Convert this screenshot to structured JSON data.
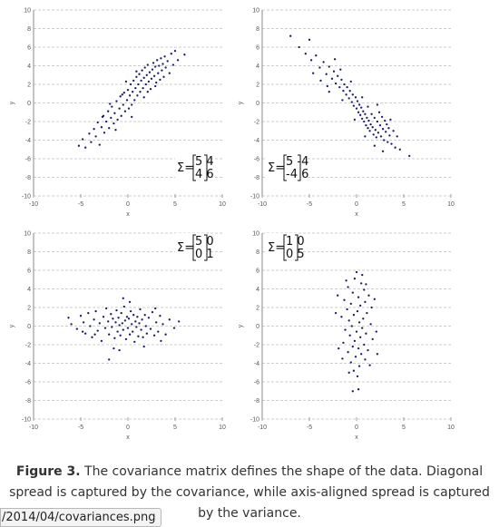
{
  "caption": {
    "figure_label": "Figure 3.",
    "text": "The covariance matrix defines the shape of the data. Diagonal spread is captured by the covariance, while axis-aligned spread is captured by the variance."
  },
  "url_tooltip": "/2014/04/covariances.png",
  "chart_data": [
    {
      "type": "scatter",
      "xlabel": "x",
      "ylabel": "y",
      "xlim": [
        -10,
        10
      ],
      "ylim": [
        -10,
        10
      ],
      "xticks": [
        "-10",
        "-5",
        "0",
        "5",
        "10"
      ],
      "yticks": [
        "10",
        "8",
        "6",
        "4",
        "2",
        "0",
        "-2",
        "-4",
        "-6",
        "-8",
        "-10"
      ],
      "grid": "horizontal dashed",
      "annotation": {
        "symbol": "Σ=",
        "matrix": [
          [
            "5",
            "4"
          ],
          [
            "4",
            "6"
          ]
        ],
        "placement": "bottom-right"
      },
      "point_color": "#1a1a6e",
      "points": [
        [
          -5.2,
          -4.6
        ],
        [
          -4.8,
          -3.9
        ],
        [
          -4.5,
          -4.8
        ],
        [
          -4.1,
          -3.3
        ],
        [
          -3.9,
          -4.2
        ],
        [
          -3.6,
          -2.8
        ],
        [
          -3.4,
          -3.6
        ],
        [
          -3.2,
          -2.1
        ],
        [
          -3.0,
          -4.5
        ],
        [
          -2.8,
          -2.6
        ],
        [
          -2.6,
          -1.4
        ],
        [
          -2.5,
          -3.2
        ],
        [
          -2.3,
          -2.0
        ],
        [
          -2.1,
          -0.9
        ],
        [
          -2.0,
          -2.7
        ],
        [
          -1.8,
          -1.6
        ],
        [
          -1.7,
          -0.4
        ],
        [
          -1.5,
          -2.2
        ],
        [
          -1.4,
          -1.1
        ],
        [
          -1.2,
          0.2
        ],
        [
          -1.1,
          -1.8
        ],
        [
          -0.9,
          -0.6
        ],
        [
          -0.8,
          0.7
        ],
        [
          -0.7,
          -1.4
        ],
        [
          -0.5,
          -0.2
        ],
        [
          -0.4,
          1.1
        ],
        [
          -0.3,
          -0.9
        ],
        [
          -0.1,
          0.3
        ],
        [
          0.0,
          1.4
        ],
        [
          0.1,
          -0.6
        ],
        [
          0.2,
          0.8
        ],
        [
          0.3,
          2.0
        ],
        [
          0.4,
          -0.2
        ],
        [
          0.5,
          1.2
        ],
        [
          0.6,
          2.4
        ],
        [
          0.7,
          0.3
        ],
        [
          0.8,
          1.6
        ],
        [
          0.9,
          2.8
        ],
        [
          1.0,
          0.8
        ],
        [
          1.1,
          2.0
        ],
        [
          1.2,
          3.1
        ],
        [
          1.3,
          1.2
        ],
        [
          1.4,
          2.4
        ],
        [
          1.5,
          3.5
        ],
        [
          1.6,
          1.6
        ],
        [
          1.7,
          2.7
        ],
        [
          1.8,
          3.8
        ],
        [
          1.9,
          2.0
        ],
        [
          2.0,
          3.0
        ],
        [
          2.1,
          4.1
        ],
        [
          2.2,
          2.3
        ],
        [
          2.3,
          3.3
        ],
        [
          2.4,
          1.5
        ],
        [
          2.5,
          2.6
        ],
        [
          2.6,
          3.6
        ],
        [
          2.7,
          4.3
        ],
        [
          2.8,
          2.9
        ],
        [
          2.9,
          3.9
        ],
        [
          3.0,
          2.2
        ],
        [
          3.1,
          4.6
        ],
        [
          3.2,
          3.2
        ],
        [
          3.3,
          4.0
        ],
        [
          3.4,
          2.5
        ],
        [
          3.5,
          4.8
        ],
        [
          3.6,
          3.5
        ],
        [
          3.7,
          4.2
        ],
        [
          3.8,
          2.8
        ],
        [
          3.9,
          5.0
        ],
        [
          4.0,
          3.8
        ],
        [
          4.2,
          4.5
        ],
        [
          4.4,
          3.2
        ],
        [
          4.6,
          5.3
        ],
        [
          4.8,
          4.1
        ],
        [
          5.0,
          5.6
        ],
        [
          5.3,
          4.6
        ],
        [
          6.0,
          5.2
        ],
        [
          -0.6,
          0.9
        ],
        [
          -1.9,
          -0.1
        ],
        [
          0.4,
          -1.5
        ],
        [
          1.7,
          0.6
        ],
        [
          -2.7,
          -1.5
        ],
        [
          -0.2,
          2.3
        ],
        [
          2.1,
          1.2
        ],
        [
          -1.3,
          -2.9
        ],
        [
          0.9,
          3.4
        ],
        [
          2.9,
          1.8
        ]
      ]
    },
    {
      "type": "scatter",
      "xlabel": "x",
      "ylabel": "y",
      "xlim": [
        -10,
        10
      ],
      "ylim": [
        -10,
        10
      ],
      "xticks": [
        "-10",
        "-5",
        "0",
        "5",
        "10"
      ],
      "yticks": [
        "10",
        "8",
        "6",
        "4",
        "2",
        "0",
        "-2",
        "-4",
        "-6",
        "-8",
        "-10"
      ],
      "grid": "horizontal dashed",
      "annotation": {
        "symbol": "Σ=",
        "matrix": [
          [
            "5",
            "-4"
          ],
          [
            "-4",
            "6"
          ]
        ],
        "placement": "bottom-left"
      },
      "point_color": "#1a1a6e",
      "points": [
        [
          -7.0,
          7.2
        ],
        [
          -6.1,
          6.0
        ],
        [
          -5.4,
          5.3
        ],
        [
          -4.8,
          4.6
        ],
        [
          -4.3,
          5.1
        ],
        [
          -3.9,
          3.8
        ],
        [
          -3.5,
          4.4
        ],
        [
          -3.2,
          3.1
        ],
        [
          -2.9,
          3.9
        ],
        [
          -2.6,
          2.6
        ],
        [
          -2.4,
          3.4
        ],
        [
          -2.2,
          2.1
        ],
        [
          -2.0,
          2.9
        ],
        [
          -1.8,
          1.7
        ],
        [
          -1.6,
          2.5
        ],
        [
          -1.4,
          1.3
        ],
        [
          -1.3,
          2.0
        ],
        [
          -1.1,
          0.9
        ],
        [
          -1.0,
          1.7
        ],
        [
          -0.8,
          0.5
        ],
        [
          -0.7,
          1.3
        ],
        [
          -0.5,
          0.1
        ],
        [
          -0.4,
          0.9
        ],
        [
          -0.3,
          -0.3
        ],
        [
          -0.1,
          0.6
        ],
        [
          0.0,
          -0.6
        ],
        [
          0.1,
          0.2
        ],
        [
          0.2,
          -1.0
        ],
        [
          0.3,
          -0.2
        ],
        [
          0.4,
          -1.3
        ],
        [
          0.5,
          -0.5
        ],
        [
          0.6,
          -1.7
        ],
        [
          0.7,
          -0.9
        ],
        [
          0.8,
          -2.0
        ],
        [
          0.9,
          -1.2
        ],
        [
          1.0,
          -2.4
        ],
        [
          1.1,
          -1.6
        ],
        [
          1.2,
          -2.7
        ],
        [
          1.3,
          -1.9
        ],
        [
          1.4,
          -3.0
        ],
        [
          1.5,
          -2.3
        ],
        [
          1.6,
          -1.2
        ],
        [
          1.7,
          -2.6
        ],
        [
          1.8,
          -3.4
        ],
        [
          1.9,
          -1.6
        ],
        [
          2.0,
          -2.9
        ],
        [
          2.1,
          -3.7
        ],
        [
          2.2,
          -2.0
        ],
        [
          2.3,
          -3.2
        ],
        [
          2.4,
          -1.0
        ],
        [
          2.5,
          -2.4
        ],
        [
          2.6,
          -3.6
        ],
        [
          2.7,
          -1.5
        ],
        [
          2.8,
          -2.8
        ],
        [
          2.9,
          -4.0
        ],
        [
          3.0,
          -1.9
        ],
        [
          3.1,
          -3.1
        ],
        [
          3.2,
          -2.3
        ],
        [
          3.3,
          -4.2
        ],
        [
          3.4,
          -2.7
        ],
        [
          3.5,
          -3.5
        ],
        [
          3.7,
          -4.4
        ],
        [
          3.9,
          -3.0
        ],
        [
          4.1,
          -4.8
        ],
        [
          4.3,
          -3.6
        ],
        [
          4.6,
          -5.0
        ],
        [
          -2.9,
          1.2
        ],
        [
          -1.7,
          3.6
        ],
        [
          -0.6,
          2.3
        ],
        [
          0.6,
          0.6
        ],
        [
          1.2,
          -0.4
        ],
        [
          -3.8,
          2.4
        ],
        [
          2.2,
          -0.2
        ],
        [
          -0.2,
          -1.8
        ],
        [
          1.9,
          -4.6
        ],
        [
          -4.6,
          3.2
        ],
        [
          3.6,
          -1.8
        ],
        [
          -1.5,
          0.3
        ],
        [
          -5.0,
          6.8
        ],
        [
          5.6,
          -5.7
        ],
        [
          0.9,
          -3.6
        ],
        [
          -2.3,
          4.7
        ],
        [
          2.8,
          -5.2
        ],
        [
          -3.1,
          1.8
        ]
      ]
    },
    {
      "type": "scatter",
      "xlabel": "x",
      "ylabel": "y",
      "xlim": [
        -10,
        10
      ],
      "ylim": [
        -10,
        10
      ],
      "xticks": [
        "-10",
        "-5",
        "0",
        "5",
        "10"
      ],
      "yticks": [
        "10",
        "8",
        "6",
        "4",
        "2",
        "0",
        "-2",
        "-4",
        "-6",
        "-8",
        "-10"
      ],
      "grid": "horizontal dashed",
      "annotation": {
        "symbol": "Σ=",
        "matrix": [
          [
            "5",
            "0"
          ],
          [
            "0",
            "1"
          ]
        ],
        "placement": "top-right"
      },
      "point_color": "#1a1a6e",
      "points": [
        [
          -6.3,
          0.9
        ],
        [
          -6.0,
          0.2
        ],
        [
          -5.4,
          -0.3
        ],
        [
          -5.0,
          1.1
        ],
        [
          -4.7,
          0.4
        ],
        [
          -4.5,
          -0.8
        ],
        [
          -4.2,
          1.4
        ],
        [
          -4.0,
          0.0
        ],
        [
          -3.8,
          -1.2
        ],
        [
          -3.6,
          0.7
        ],
        [
          -3.4,
          1.6
        ],
        [
          -3.2,
          -0.5
        ],
        [
          -3.0,
          0.3
        ],
        [
          -2.8,
          -1.6
        ],
        [
          -2.6,
          1.0
        ],
        [
          -2.4,
          -0.2
        ],
        [
          -2.3,
          1.9
        ],
        [
          -2.1,
          0.5
        ],
        [
          -2.0,
          -0.9
        ],
        [
          -1.8,
          1.3
        ],
        [
          -1.7,
          -0.1
        ],
        [
          -1.6,
          0.8
        ],
        [
          -1.4,
          -1.3
        ],
        [
          -1.3,
          0.4
        ],
        [
          -1.2,
          1.7
        ],
        [
          -1.1,
          -0.6
        ],
        [
          -1.0,
          0.9
        ],
        [
          -0.9,
          0.1
        ],
        [
          -0.8,
          -1.0
        ],
        [
          -0.7,
          1.4
        ],
        [
          -0.6,
          0.3
        ],
        [
          -0.5,
          -0.4
        ],
        [
          -0.4,
          2.1
        ],
        [
          -0.3,
          0.6
        ],
        [
          -0.2,
          -1.4
        ],
        [
          -0.1,
          1.0
        ],
        [
          0.0,
          -0.2
        ],
        [
          0.1,
          0.8
        ],
        [
          0.2,
          -0.9
        ],
        [
          0.3,
          1.6
        ],
        [
          0.4,
          0.2
        ],
        [
          0.5,
          -0.6
        ],
        [
          0.6,
          1.2
        ],
        [
          0.7,
          -1.7
        ],
        [
          0.8,
          0.5
        ],
        [
          0.9,
          -0.1
        ],
        [
          1.0,
          1.0
        ],
        [
          1.1,
          -1.1
        ],
        [
          1.2,
          0.3
        ],
        [
          1.3,
          1.8
        ],
        [
          1.4,
          -0.4
        ],
        [
          1.5,
          0.7
        ],
        [
          1.6,
          -1.2
        ],
        [
          1.8,
          1.2
        ],
        [
          1.9,
          0.0
        ],
        [
          2.0,
          -0.8
        ],
        [
          2.2,
          0.9
        ],
        [
          2.4,
          -0.3
        ],
        [
          2.6,
          1.5
        ],
        [
          2.8,
          -1.0
        ],
        [
          3.0,
          0.4
        ],
        [
          3.2,
          -0.6
        ],
        [
          3.4,
          1.1
        ],
        [
          3.7,
          0.2
        ],
        [
          4.0,
          -0.9
        ],
        [
          4.4,
          0.7
        ],
        [
          4.9,
          -0.2
        ],
        [
          5.4,
          0.5
        ],
        [
          -2.0,
          -3.6
        ],
        [
          -0.5,
          3.0
        ],
        [
          0.2,
          2.6
        ],
        [
          -1.5,
          -2.4
        ],
        [
          1.7,
          -2.2
        ],
        [
          -3.5,
          -0.9
        ],
        [
          2.9,
          1.9
        ],
        [
          -0.9,
          -2.6
        ],
        [
          3.5,
          -1.6
        ],
        [
          -4.8,
          -0.6
        ]
      ]
    },
    {
      "type": "scatter",
      "xlabel": "x",
      "ylabel": "y",
      "xlim": [
        -10,
        10
      ],
      "ylim": [
        -10,
        10
      ],
      "xticks": [
        "-10",
        "-5",
        "0",
        "5",
        "10"
      ],
      "yticks": [
        "10",
        "8",
        "6",
        "4",
        "2",
        "0",
        "-2",
        "-4",
        "-6",
        "-8",
        "-10"
      ],
      "grid": "horizontal dashed",
      "annotation": {
        "symbol": "Σ=",
        "matrix": [
          [
            "1",
            "0"
          ],
          [
            "0",
            "5"
          ]
        ],
        "placement": "top-left"
      },
      "point_color": "#1a1a6e",
      "points": [
        [
          0.0,
          5.8
        ],
        [
          -0.2,
          5.1
        ],
        [
          0.5,
          4.6
        ],
        [
          -0.9,
          4.2
        ],
        [
          0.8,
          3.9
        ],
        [
          -0.4,
          3.6
        ],
        [
          1.3,
          3.3
        ],
        [
          0.2,
          3.1
        ],
        [
          -1.3,
          2.8
        ],
        [
          0.9,
          2.6
        ],
        [
          -0.6,
          2.4
        ],
        [
          0.4,
          2.2
        ],
        [
          1.6,
          2.0
        ],
        [
          -1.0,
          1.8
        ],
        [
          0.1,
          1.6
        ],
        [
          1.1,
          1.4
        ],
        [
          -0.3,
          1.2
        ],
        [
          -1.6,
          1.0
        ],
        [
          0.7,
          0.8
        ],
        [
          -0.8,
          0.6
        ],
        [
          0.3,
          0.4
        ],
        [
          1.5,
          0.2
        ],
        [
          -0.5,
          0.0
        ],
        [
          0.6,
          -0.2
        ],
        [
          -1.2,
          -0.4
        ],
        [
          0.0,
          -0.6
        ],
        [
          1.0,
          -0.8
        ],
        [
          -0.7,
          -1.0
        ],
        [
          0.4,
          -1.2
        ],
        [
          1.7,
          -1.4
        ],
        [
          -0.2,
          -1.6
        ],
        [
          -1.4,
          -1.8
        ],
        [
          0.8,
          -2.0
        ],
        [
          -0.4,
          -2.2
        ],
        [
          0.2,
          -2.4
        ],
        [
          1.2,
          -2.6
        ],
        [
          -0.9,
          -2.8
        ],
        [
          0.5,
          -3.0
        ],
        [
          -0.1,
          -3.3
        ],
        [
          0.9,
          -3.6
        ],
        [
          -0.6,
          -3.9
        ],
        [
          0.3,
          -4.3
        ],
        [
          -0.3,
          -4.8
        ],
        [
          0.1,
          -5.4
        ],
        [
          -2.2,
          1.4
        ],
        [
          2.1,
          -0.6
        ],
        [
          -1.9,
          -2.4
        ],
        [
          1.9,
          2.9
        ],
        [
          -2.0,
          3.3
        ],
        [
          2.2,
          -3.0
        ],
        [
          -1.1,
          4.9
        ],
        [
          1.4,
          -4.2
        ],
        [
          -0.4,
          -7.0
        ],
        [
          0.2,
          -6.8
        ],
        [
          0.6,
          5.5
        ],
        [
          -1.5,
          -3.5
        ],
        [
          1.0,
          4.5
        ],
        [
          -0.8,
          -5.0
        ]
      ]
    }
  ]
}
